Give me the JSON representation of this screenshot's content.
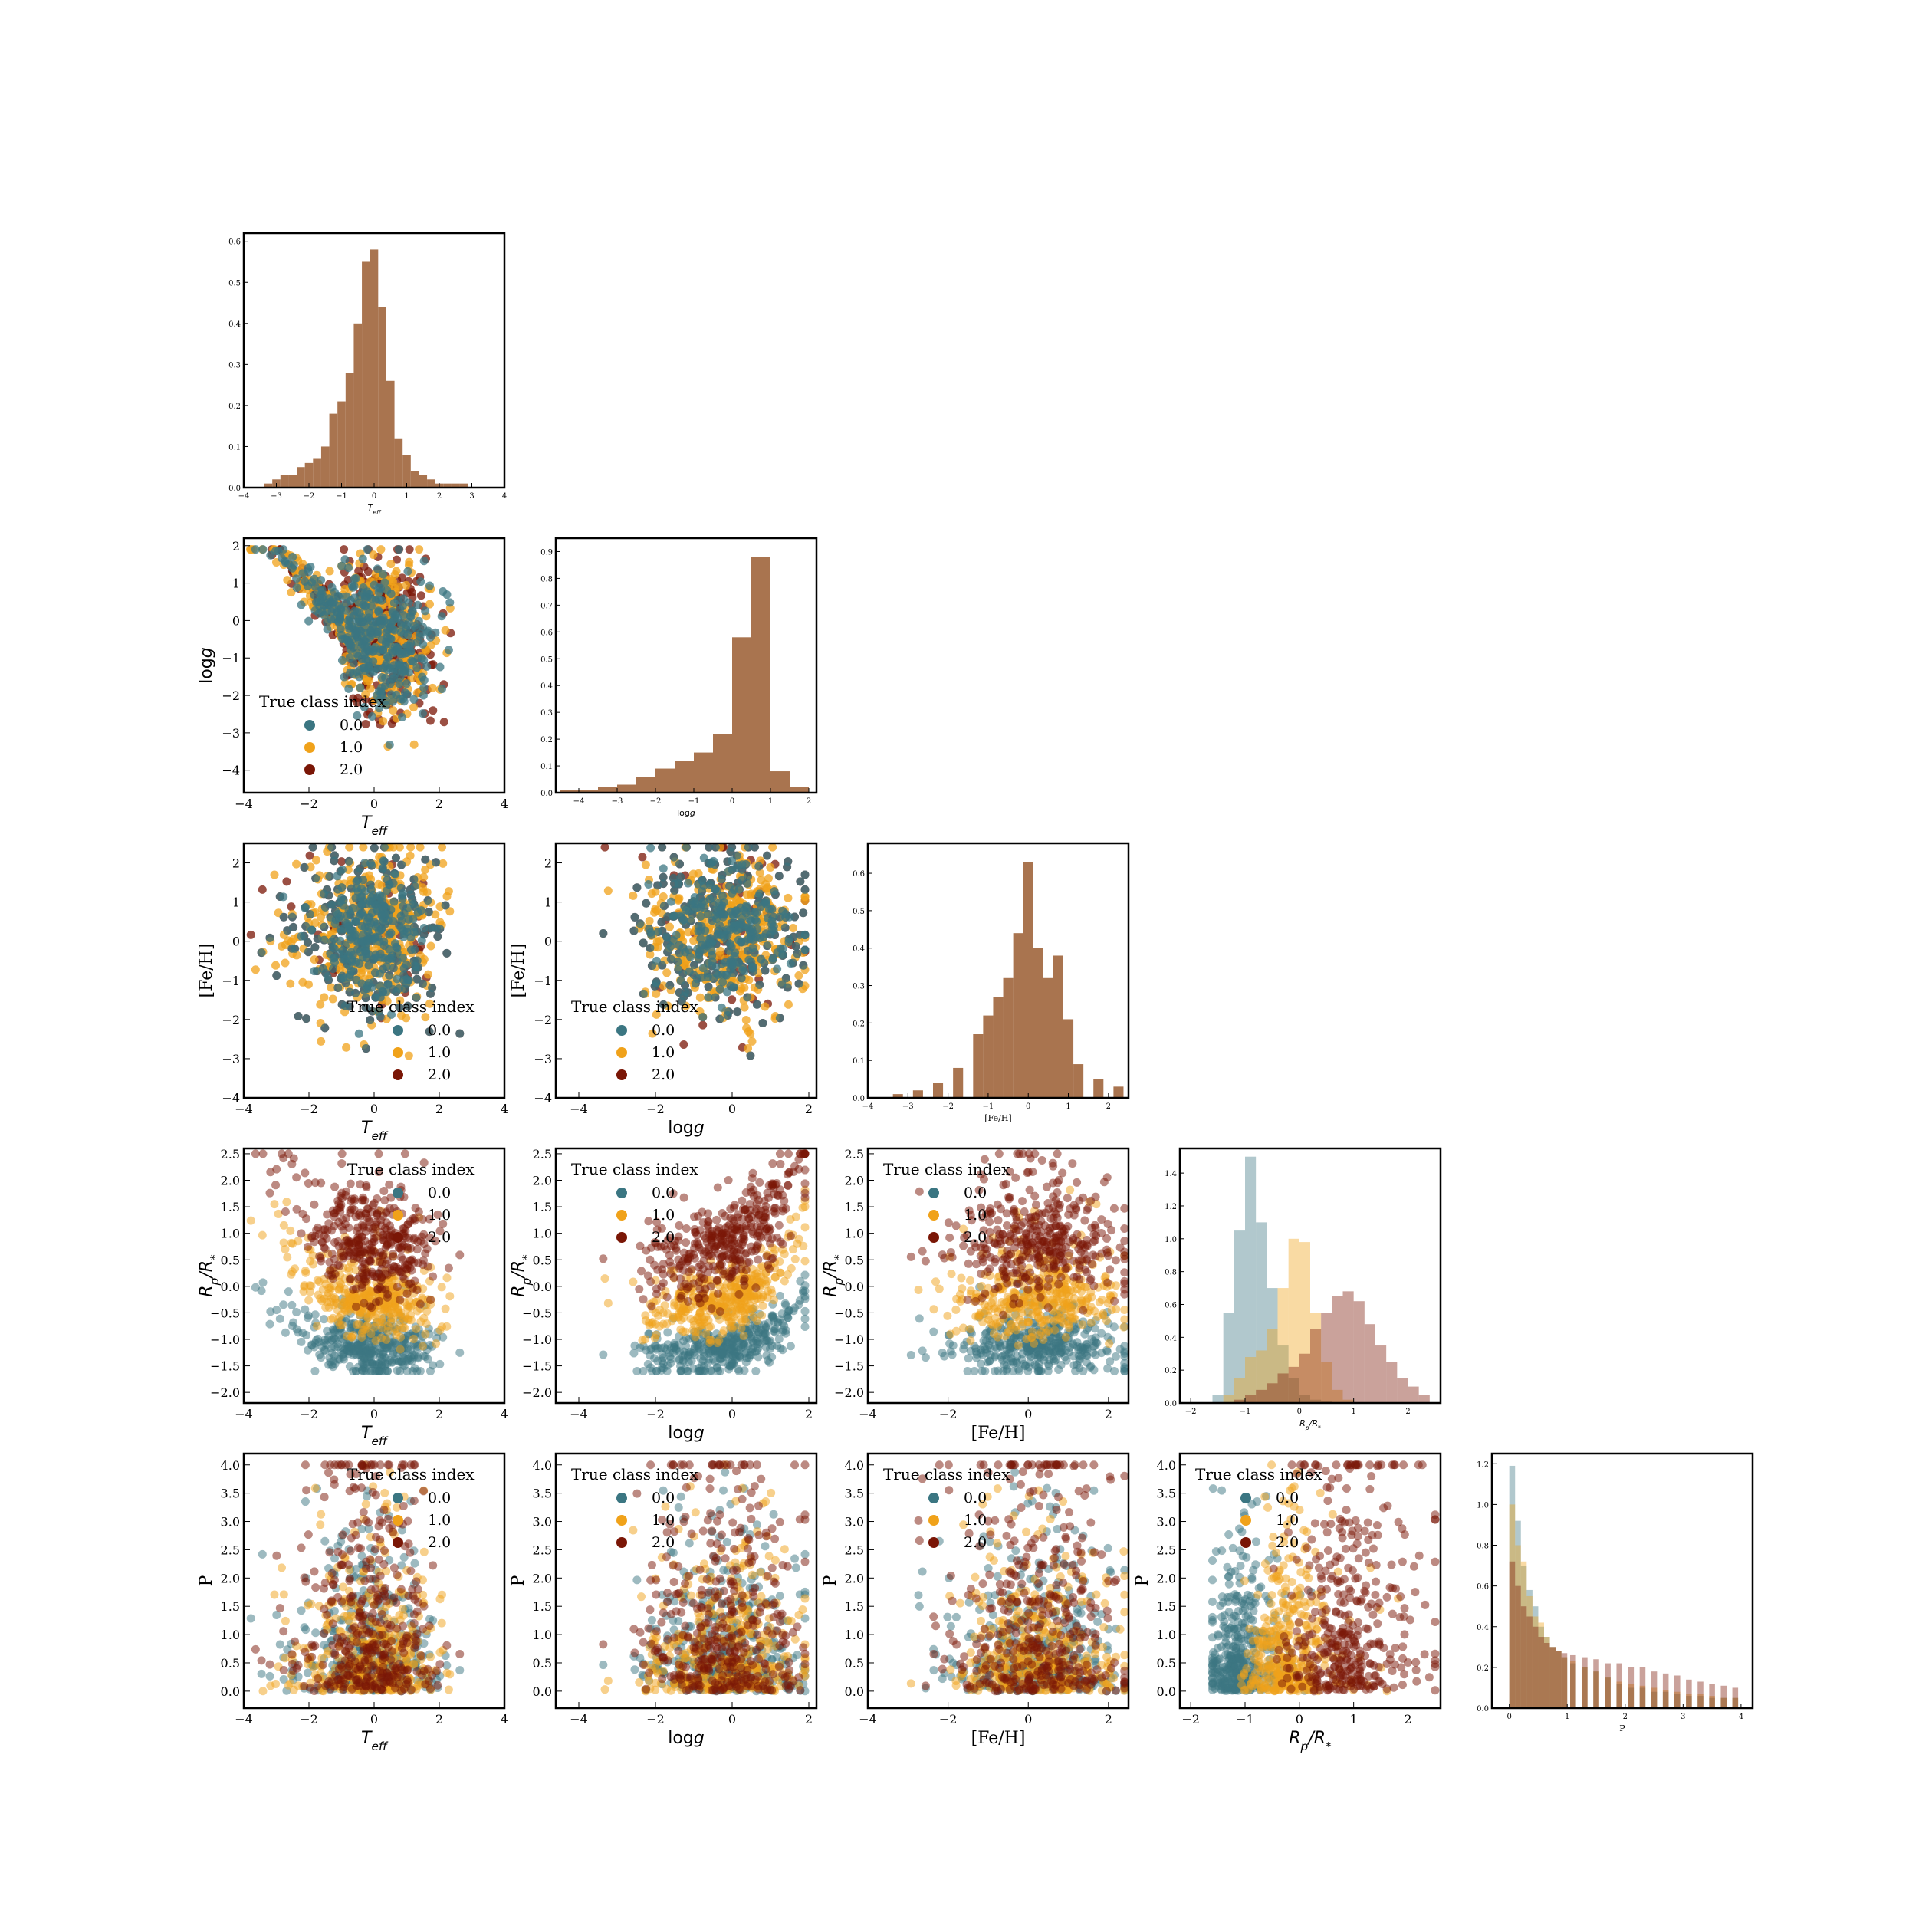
{
  "figure": {
    "type": "corner_plot",
    "legend_title": "True class index",
    "legend_labels": [
      "0.0",
      "1.0",
      "2.0"
    ],
    "class_colors": [
      "#3b7682",
      "#f0a21a",
      "#7a1606"
    ],
    "hist_color": "#a9744f",
    "variables": [
      {
        "key": "teff",
        "label": "T_eff",
        "range": [
          -4,
          4
        ],
        "ticks": [
          "−4",
          "−2",
          "0",
          "2",
          "4"
        ],
        "hist_ticks": [
          "−4",
          "−3",
          "−2",
          "−1",
          "0",
          "1",
          "2",
          "3",
          "4"
        ]
      },
      {
        "key": "logg",
        "label": "logg",
        "range": [
          -4.6,
          2.2
        ],
        "ticks": [
          "−4",
          "−2",
          "0",
          "2"
        ],
        "hist_ticks": [
          "−4",
          "−3",
          "−2",
          "−1",
          "0",
          "1",
          "2"
        ]
      },
      {
        "key": "feh",
        "label": "[Fe/H]",
        "range": [
          -4,
          2.5
        ],
        "ticks": [
          "−4",
          "−2",
          "0",
          "2"
        ],
        "hist_ticks": [
          "−4",
          "−3",
          "−2",
          "−1",
          "0",
          "1",
          "2"
        ]
      },
      {
        "key": "rp",
        "label": "Rp/R*",
        "range": [
          -2.2,
          2.6
        ],
        "ticks": [
          "−2",
          "−1",
          "0",
          "1",
          "2"
        ],
        "hist_ticks": [
          "−2",
          "−1",
          "0",
          "1",
          "2"
        ]
      },
      {
        "key": "p",
        "label": "P",
        "range": [
          -0.3,
          4.2
        ],
        "ticks": [
          "0",
          "1",
          "2",
          "3",
          "4"
        ],
        "hist_ticks": [
          "0",
          "1",
          "2",
          "3",
          "4"
        ]
      }
    ],
    "y_ticks": {
      "logg": [
        "−4",
        "−3",
        "−2",
        "−1",
        "0",
        "1",
        "2"
      ],
      "feh": [
        "−4",
        "−3",
        "−2",
        "−1",
        "0",
        "1",
        "2"
      ],
      "rp": [
        "−2.0",
        "−1.5",
        "−1.0",
        "−0.5",
        "0.0",
        "0.5",
        "1.0",
        "1.5",
        "2.0",
        "2.5"
      ],
      "p": [
        "0.0",
        "0.5",
        "1.0",
        "1.5",
        "2.0",
        "2.5",
        "3.0",
        "3.5",
        "4.0"
      ]
    }
  },
  "chart_data": [
    {
      "type": "bar",
      "title": "",
      "xlabel": "T_eff",
      "ylabel": "",
      "ylim": [
        0,
        0.62
      ],
      "x": [
        -3.5,
        -3.25,
        -3.0,
        -2.75,
        -2.5,
        -2.25,
        -2.0,
        -1.75,
        -1.5,
        -1.25,
        -1.0,
        -0.75,
        -0.5,
        -0.25,
        0.0,
        0.25,
        0.5,
        0.75,
        1.0,
        1.25,
        1.5,
        1.75,
        2.0,
        2.25,
        2.5,
        2.75,
        3.0,
        3.25,
        3.5
      ],
      "values": [
        0.0,
        0.01,
        0.02,
        0.03,
        0.03,
        0.05,
        0.06,
        0.07,
        0.1,
        0.18,
        0.21,
        0.28,
        0.4,
        0.55,
        0.58,
        0.44,
        0.26,
        0.12,
        0.08,
        0.04,
        0.03,
        0.02,
        0.01,
        0.01,
        0.01,
        0.01,
        0.0,
        0.0,
        0.0
      ]
    },
    {
      "type": "bar",
      "title": "",
      "xlabel": "logg",
      "ylabel": "",
      "ylim": [
        0,
        0.95
      ],
      "x": [
        -4.25,
        -3.75,
        -3.25,
        -2.75,
        -2.25,
        -1.75,
        -1.25,
        -0.75,
        -0.25,
        0.25,
        0.75,
        1.25,
        1.75
      ],
      "values": [
        0.01,
        0.01,
        0.02,
        0.03,
        0.06,
        0.09,
        0.12,
        0.15,
        0.22,
        0.58,
        0.88,
        0.08,
        0.02
      ]
    },
    {
      "type": "bar",
      "title": "",
      "xlabel": "[Fe/H]",
      "ylabel": "",
      "ylim": [
        0,
        0.68
      ],
      "x": [
        -3.75,
        -3.25,
        -2.75,
        -2.25,
        -1.75,
        -1.25,
        -1.0,
        -0.75,
        -0.5,
        -0.25,
        0.0,
        0.25,
        0.5,
        0.75,
        1.0,
        1.25,
        1.75,
        2.25
      ],
      "values": [
        0.0,
        0.01,
        0.02,
        0.04,
        0.08,
        0.17,
        0.22,
        0.27,
        0.32,
        0.44,
        0.63,
        0.4,
        0.32,
        0.38,
        0.21,
        0.09,
        0.05,
        0.03
      ]
    },
    {
      "type": "bar",
      "title": "",
      "xlabel": "Rp/R*",
      "ylabel": "",
      "ylim": [
        0,
        1.55
      ],
      "x": [
        -1.5,
        -1.3,
        -1.1,
        -0.9,
        -0.7,
        -0.5,
        -0.3,
        -0.1,
        0.1,
        0.3,
        0.5,
        0.7,
        0.9,
        1.1,
        1.3,
        1.5,
        1.7,
        1.9,
        2.1,
        2.3
      ],
      "series": [
        {
          "name": "0.0",
          "values": [
            0.05,
            0.55,
            1.05,
            1.5,
            1.1,
            0.7,
            0.35,
            0.15,
            0.05,
            0.02,
            0.01,
            0.0,
            0.0,
            0.0,
            0.0,
            0.0,
            0.0,
            0.0,
            0.0,
            0.0
          ]
        },
        {
          "name": "1.0",
          "values": [
            0.0,
            0.05,
            0.15,
            0.28,
            0.32,
            0.45,
            0.7,
            1.0,
            0.98,
            0.55,
            0.25,
            0.08,
            0.02,
            0.0,
            0.0,
            0.0,
            0.0,
            0.0,
            0.0,
            0.0
          ]
        },
        {
          "name": "2.0",
          "values": [
            0.0,
            0.0,
            0.02,
            0.05,
            0.08,
            0.12,
            0.18,
            0.22,
            0.3,
            0.45,
            0.55,
            0.65,
            0.68,
            0.62,
            0.48,
            0.35,
            0.25,
            0.15,
            0.1,
            0.05
          ]
        }
      ]
    },
    {
      "type": "bar",
      "title": "",
      "xlabel": "P",
      "ylabel": "",
      "ylim": [
        0,
        1.25
      ],
      "x": [
        0.05,
        0.15,
        0.25,
        0.35,
        0.45,
        0.55,
        0.65,
        0.75,
        0.85,
        0.95,
        1.1,
        1.3,
        1.5,
        1.7,
        1.9,
        2.1,
        2.3,
        2.5,
        2.7,
        2.9,
        3.1,
        3.3,
        3.5,
        3.7,
        3.9
      ],
      "series": [
        {
          "name": "0.0",
          "values": [
            1.19,
            0.92,
            0.7,
            0.58,
            0.5,
            0.4,
            0.35,
            0.3,
            0.28,
            0.25,
            0.22,
            0.2,
            0.18,
            0.15,
            0.12,
            0.1,
            0.1,
            0.08,
            0.08,
            0.07,
            0.06,
            0.06,
            0.05,
            0.05,
            0.05
          ]
        },
        {
          "name": "1.0",
          "values": [
            1.0,
            0.8,
            0.72,
            0.55,
            0.45,
            0.42,
            0.35,
            0.3,
            0.28,
            0.25,
            0.23,
            0.2,
            0.18,
            0.15,
            0.13,
            0.12,
            0.11,
            0.1,
            0.09,
            0.08,
            0.07,
            0.07,
            0.06,
            0.05,
            0.05
          ]
        },
        {
          "name": "2.0",
          "values": [
            0.72,
            0.6,
            0.5,
            0.45,
            0.4,
            0.35,
            0.32,
            0.3,
            0.28,
            0.27,
            0.26,
            0.25,
            0.24,
            0.22,
            0.22,
            0.2,
            0.2,
            0.18,
            0.17,
            0.16,
            0.14,
            0.13,
            0.12,
            0.11,
            0.1
          ]
        }
      ]
    },
    {
      "type": "scatter",
      "note": "pairwise scatter panels; classes 0.0, 1.0, 2.0 (dense synthetic points)"
    }
  ]
}
